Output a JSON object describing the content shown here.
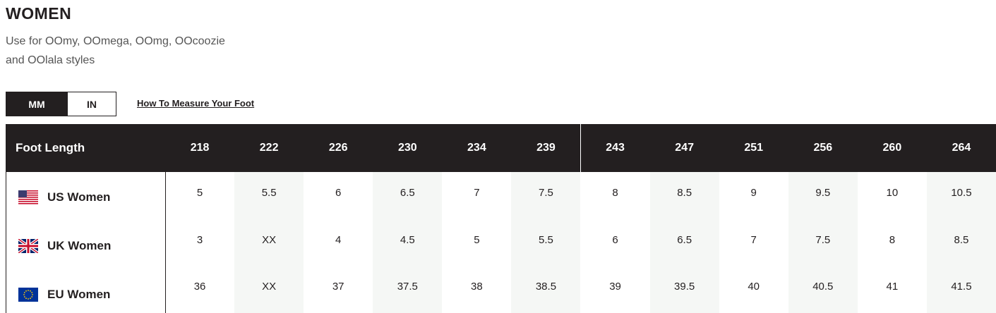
{
  "header": {
    "title": "WOMEN",
    "subtitle": [
      "Use for OOmy, OOmega, OOmg, OOcoozie",
      "and OOlala styles"
    ]
  },
  "units": {
    "options": [
      "MM",
      "IN"
    ]
  },
  "link": "How To Measure Your Foot",
  "table": {
    "header": [
      "Foot Length",
      "218",
      "222",
      "226",
      "230",
      "234",
      "239",
      "243",
      "247",
      "251",
      "256",
      "260",
      "264"
    ],
    "rows": [
      [
        "US Women",
        "5",
        "5.5",
        "6",
        "6.5",
        "7",
        "7.5",
        "8",
        "8.5",
        "9",
        "9.5",
        "10",
        "10.5"
      ],
      [
        "UK Women",
        "3",
        "XX",
        "4",
        "4.5",
        "5",
        "5.5",
        "6",
        "6.5",
        "7",
        "7.5",
        "8",
        "8.5"
      ],
      [
        "EU Women",
        "36",
        "XX",
        "37",
        "37.5",
        "38",
        "38.5",
        "39",
        "39.5",
        "40",
        "40.5",
        "41",
        "41.5"
      ]
    ]
  }
}
